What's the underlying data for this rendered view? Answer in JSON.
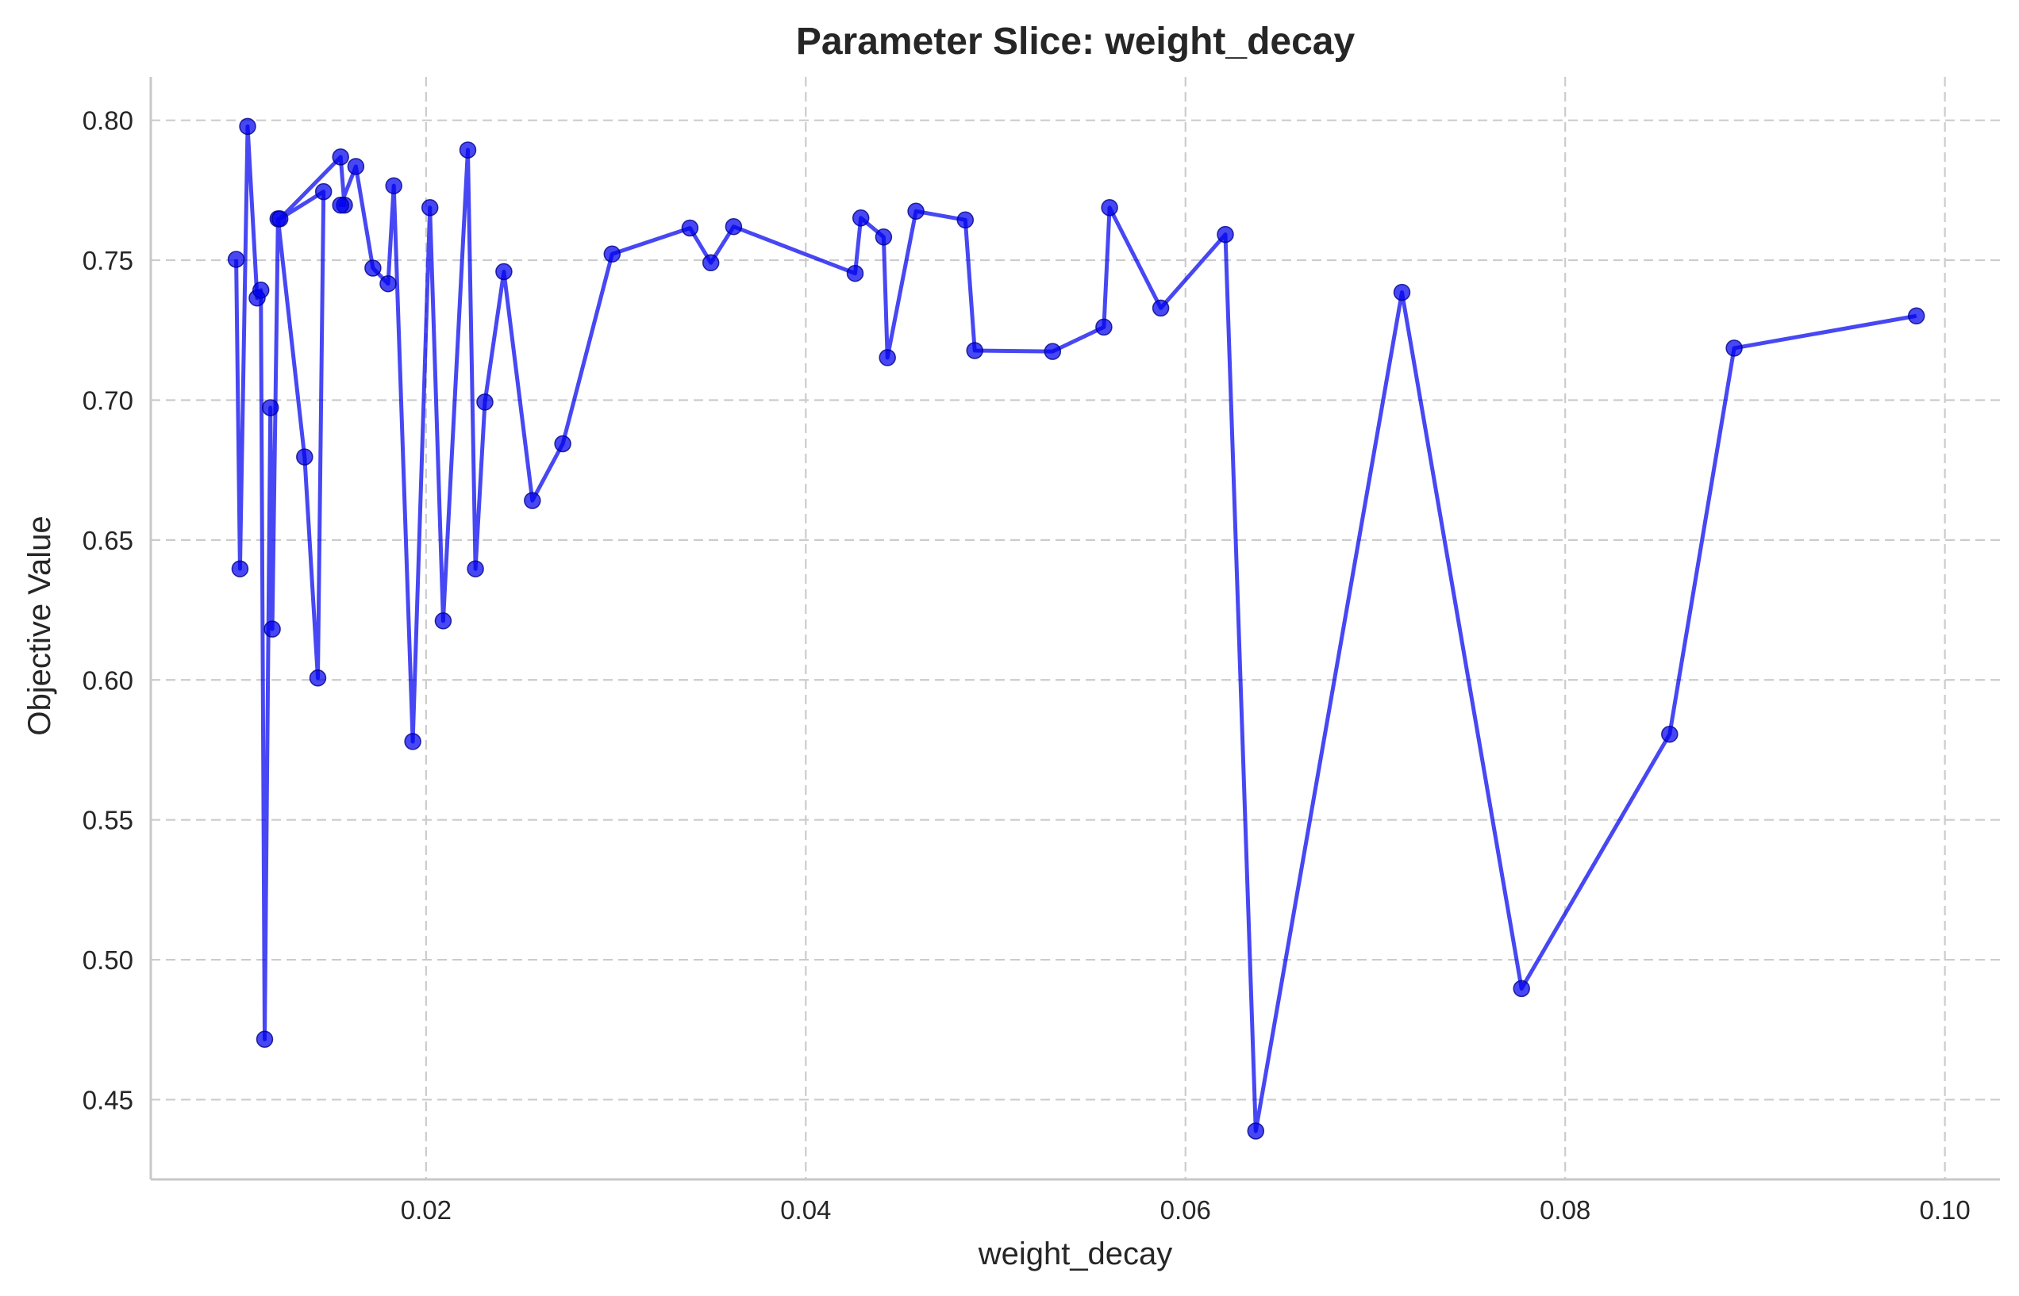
{
  "chart_data": {
    "type": "line",
    "title": "Parameter Slice: weight_decay",
    "xlabel": "weight_decay",
    "ylabel": "Objective Value",
    "xlim": [
      0.0055,
      0.1029
    ],
    "ylim": [
      0.4215,
      0.8155
    ],
    "x_ticks": [
      0.02,
      0.04,
      0.06,
      0.08,
      0.1
    ],
    "x_tick_labels": [
      "0.02",
      "0.04",
      "0.06",
      "0.08",
      "0.10"
    ],
    "y_ticks": [
      0.45,
      0.5,
      0.55,
      0.6,
      0.65,
      0.7,
      0.75,
      0.8
    ],
    "y_tick_labels": [
      "0.45",
      "0.50",
      "0.55",
      "0.60",
      "0.65",
      "0.70",
      "0.75",
      "0.80"
    ],
    "grid": true,
    "line_color": "#0000ee",
    "x": [
      0.01,
      0.0102,
      0.0106,
      0.0111,
      0.0113,
      0.0115,
      0.0118,
      0.0119,
      0.0122,
      0.0136,
      0.0143,
      0.0146,
      0.0123,
      0.0155,
      0.0157,
      0.0155,
      0.0163,
      0.0172,
      0.018,
      0.0183,
      0.0193,
      0.0202,
      0.0209,
      0.0222,
      0.0226,
      0.0231,
      0.0241,
      0.0256,
      0.0272,
      0.0298,
      0.0339,
      0.035,
      0.0362,
      0.0426,
      0.0429,
      0.0441,
      0.0443,
      0.0458,
      0.0484,
      0.0489,
      0.053,
      0.0557,
      0.056,
      0.0587,
      0.0621,
      0.0637,
      0.0714,
      0.0777,
      0.0855,
      0.0889,
      0.0985
    ],
    "y": [
      0.7503,
      0.6397,
      0.7978,
      0.7365,
      0.7393,
      0.4716,
      0.6973,
      0.6182,
      0.7648,
      0.6797,
      0.6007,
      0.7745,
      0.7648,
      0.7869,
      0.7697,
      0.7697,
      0.7835,
      0.7472,
      0.7416,
      0.7766,
      0.578,
      0.7688,
      0.6211,
      0.7894,
      0.6397,
      0.6993,
      0.7459,
      0.6641,
      0.6844,
      0.7522,
      0.7615,
      0.7491,
      0.762,
      0.7453,
      0.7651,
      0.7583,
      0.7152,
      0.7675,
      0.7644,
      0.7177,
      0.7174,
      0.7261,
      0.7688,
      0.7329,
      0.7592,
      0.4388,
      0.7385,
      0.4897,
      0.5806,
      0.7186,
      0.7301
    ]
  }
}
